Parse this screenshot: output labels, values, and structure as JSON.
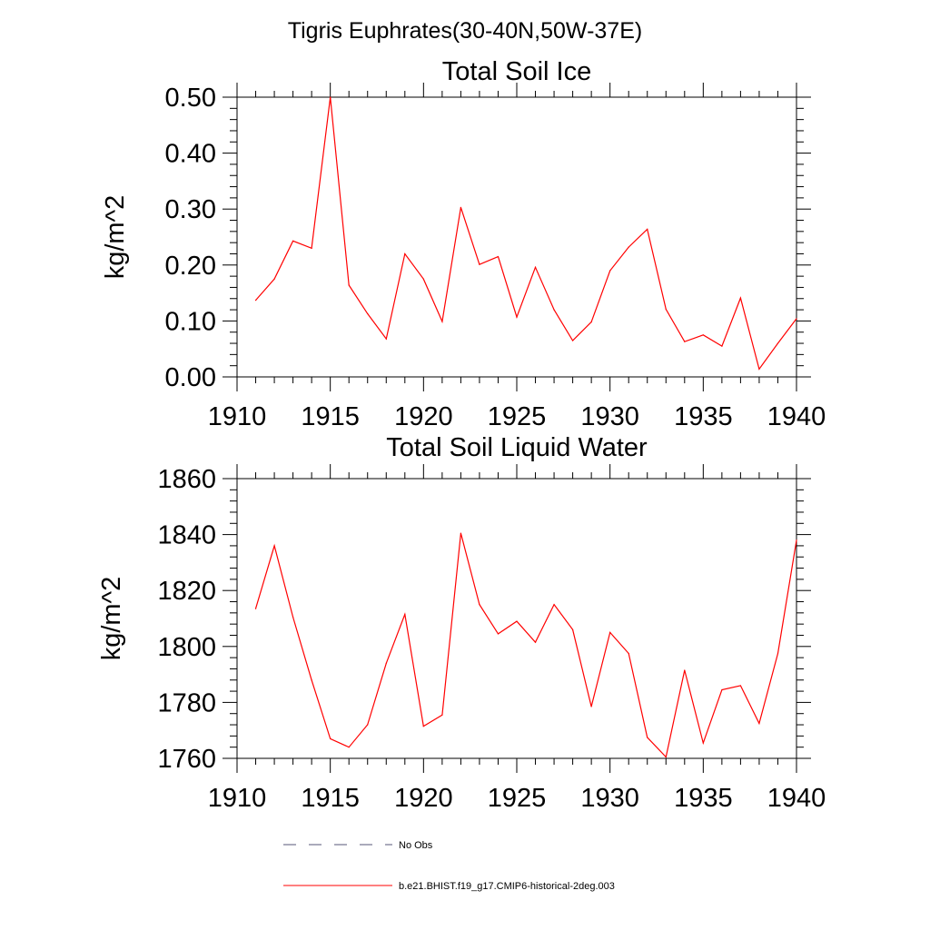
{
  "suptitle": "Tigris Euphrates(30-40N,50W-37E)",
  "chart_data": [
    {
      "type": "line",
      "title": "Total Soil Ice",
      "ylabel": "kg/m^2",
      "xlabel": "",
      "xlim": [
        1910,
        1940
      ],
      "ylim": [
        0,
        0.5
      ],
      "x_ticks": [
        1910,
        1915,
        1920,
        1925,
        1930,
        1935,
        1940
      ],
      "x_tick_labels": [
        "1910",
        "1915",
        "1920",
        "1925",
        "1930",
        "1935",
        "1940"
      ],
      "y_ticks": [
        0,
        0.1,
        0.2,
        0.3,
        0.4,
        0.5
      ],
      "y_tick_labels": [
        "0.00",
        "0.10",
        "0.20",
        "0.30",
        "0.40",
        "0.50"
      ],
      "series": [
        {
          "name": "b.e21.BHIST.f19_g17.CMIP6-historical-2deg.003",
          "color": "#ff0000",
          "x": [
            1911,
            1912,
            1913,
            1914,
            1915,
            1916,
            1917,
            1918,
            1919,
            1920,
            1921,
            1922,
            1923,
            1924,
            1925,
            1926,
            1927,
            1928,
            1929,
            1930,
            1931,
            1932,
            1933,
            1934,
            1935,
            1936,
            1937,
            1938,
            1939,
            1940
          ],
          "values": [
            0.137,
            0.175,
            0.243,
            0.23,
            0.5,
            0.164,
            0.113,
            0.068,
            0.22,
            0.175,
            0.099,
            0.303,
            0.201,
            0.215,
            0.107,
            0.196,
            0.12,
            0.065,
            0.098,
            0.19,
            0.232,
            0.264,
            0.121,
            0.063,
            0.075,
            0.055,
            0.141,
            0.014,
            0.06,
            0.104
          ]
        }
      ]
    },
    {
      "type": "line",
      "title": "Total Soil Liquid Water",
      "ylabel": "kg/m^2",
      "xlabel": "",
      "xlim": [
        1910,
        1940
      ],
      "ylim": [
        1760,
        1860
      ],
      "x_ticks": [
        1910,
        1915,
        1920,
        1925,
        1930,
        1935,
        1940
      ],
      "x_tick_labels": [
        "1910",
        "1915",
        "1920",
        "1925",
        "1930",
        "1935",
        "1940"
      ],
      "y_ticks": [
        1760,
        1780,
        1800,
        1820,
        1840,
        1860
      ],
      "y_tick_labels": [
        "1760",
        "1780",
        "1800",
        "1820",
        "1840",
        "1860"
      ],
      "series": [
        {
          "name": "b.e21.BHIST.f19_g17.CMIP6-historical-2deg.003",
          "color": "#ff0000",
          "x": [
            1911,
            1912,
            1913,
            1914,
            1915,
            1916,
            1917,
            1918,
            1919,
            1920,
            1921,
            1922,
            1923,
            1924,
            1925,
            1926,
            1927,
            1928,
            1929,
            1930,
            1931,
            1932,
            1933,
            1934,
            1935,
            1936,
            1937,
            1938,
            1939,
            1940
          ],
          "values": [
            1813.5,
            1836.0,
            1810.5,
            1788.0,
            1767.0,
            1764.0,
            1772.0,
            1794.0,
            1811.5,
            1771.5,
            1775.5,
            1840.5,
            1815.0,
            1804.5,
            1809.0,
            1801.5,
            1815.0,
            1806.0,
            1778.5,
            1805.0,
            1797.5,
            1767.5,
            1760.5,
            1791.5,
            1765.5,
            1784.5,
            1786.0,
            1772.5,
            1797.5,
            1838.0
          ]
        }
      ]
    }
  ],
  "legend": {
    "items": [
      {
        "label": "No Obs",
        "color": "#555577",
        "style": "dashed"
      },
      {
        "label": "b.e21.BHIST.f19_g17.CMIP6-historical-2deg.003",
        "color": "#ff0000",
        "style": "solid"
      }
    ]
  }
}
